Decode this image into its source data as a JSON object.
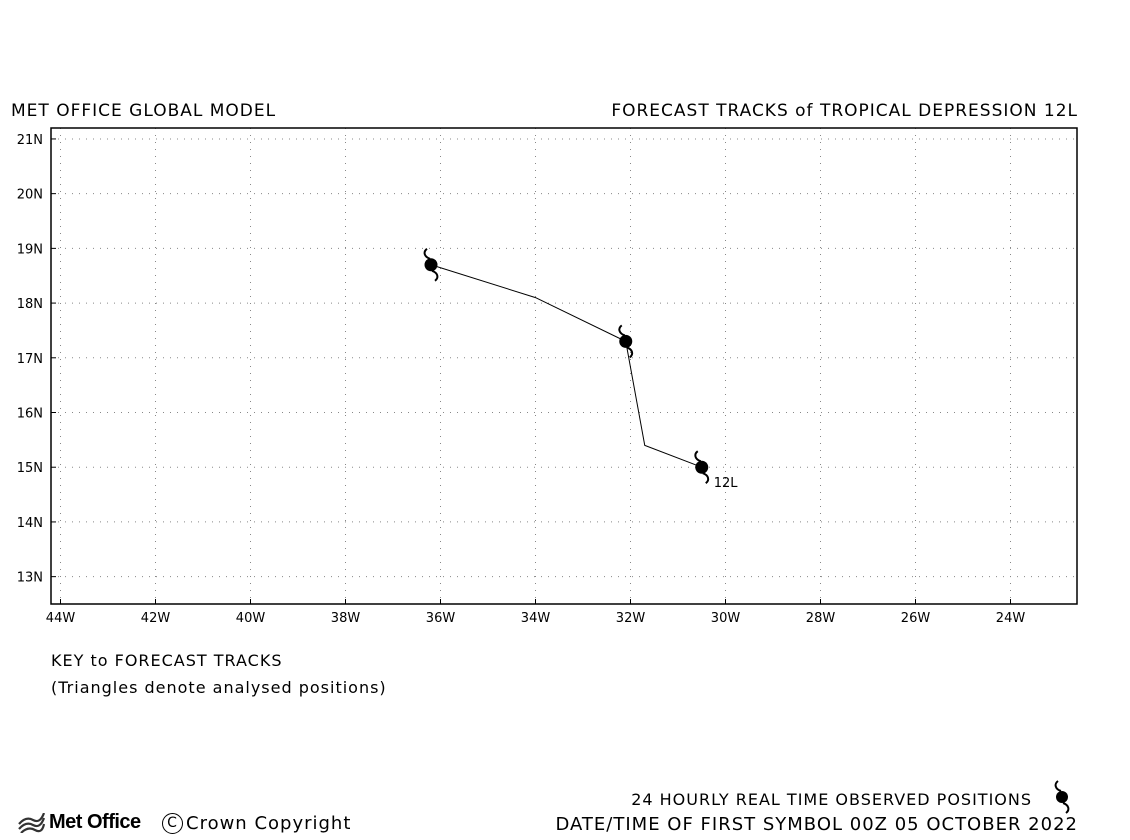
{
  "header": {
    "left_title": "MET OFFICE GLOBAL MODEL",
    "right_title": "FORECAST TRACKS of TROPICAL DEPRESSION 12L"
  },
  "map": {
    "lat_range": [
      12.5,
      21.2
    ],
    "lon_range": [
      -44.2,
      -22.6
    ],
    "lat_ticks": [
      {
        "value": 21,
        "label": "21N"
      },
      {
        "value": 20,
        "label": "20N"
      },
      {
        "value": 19,
        "label": "19N"
      },
      {
        "value": 18,
        "label": "18N"
      },
      {
        "value": 17,
        "label": "17N"
      },
      {
        "value": 16,
        "label": "16N"
      },
      {
        "value": 15,
        "label": "15N"
      },
      {
        "value": 14,
        "label": "14N"
      },
      {
        "value": 13,
        "label": "13N"
      }
    ],
    "lon_ticks": [
      {
        "value": -44,
        "label": "44W"
      },
      {
        "value": -42,
        "label": "42W"
      },
      {
        "value": -40,
        "label": "40W"
      },
      {
        "value": -38,
        "label": "38W"
      },
      {
        "value": -36,
        "label": "36W"
      },
      {
        "value": -34,
        "label": "34W"
      },
      {
        "value": -32,
        "label": "32W"
      },
      {
        "value": -30,
        "label": "30W"
      },
      {
        "value": -28,
        "label": "28W"
      },
      {
        "value": -26,
        "label": "26W"
      },
      {
        "value": -24,
        "label": "24W"
      }
    ],
    "grid": "dotted",
    "track": {
      "name": "12L",
      "points": [
        {
          "lon": -30.5,
          "lat": 15.0
        },
        {
          "lon": -31.7,
          "lat": 15.4
        },
        {
          "lon": -32.1,
          "lat": 17.3
        },
        {
          "lon": -34.0,
          "lat": 18.1
        },
        {
          "lon": -36.2,
          "lat": 18.7
        }
      ],
      "symbols": [
        {
          "lon": -30.5,
          "lat": 15.0
        },
        {
          "lon": -32.1,
          "lat": 17.3
        },
        {
          "lon": -36.2,
          "lat": 18.7
        }
      ]
    }
  },
  "key": {
    "title": "KEY to FORECAST TRACKS",
    "note": "(Triangles denote analysed positions)"
  },
  "footer": {
    "observed": "24 HOURLY REAL TIME OBSERVED POSITIONS",
    "datetime": "DATE/TIME OF FIRST SYMBOL 00Z 05 OCTOBER 2022",
    "logo": "Met Office",
    "copyright_symbol": "C",
    "copyright": "Crown Copyright"
  },
  "icons": {
    "storm": "tropical-cyclone-icon",
    "logo": "met-office-wave-icon"
  }
}
